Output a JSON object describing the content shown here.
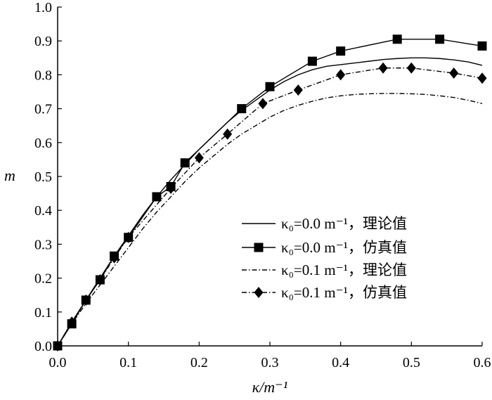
{
  "chart_data": {
    "type": "line",
    "title": "",
    "xlabel": "κ/m⁻¹",
    "ylabel": "m",
    "xlim": [
      0.0,
      0.6
    ],
    "ylim": [
      0.0,
      1.0
    ],
    "x_ticks": [
      "0.0",
      "0.1",
      "0.2",
      "0.3",
      "0.4",
      "0.5",
      "0.6"
    ],
    "y_ticks": [
      "0.0",
      "0.1",
      "0.2",
      "0.3",
      "0.4",
      "0.5",
      "0.6",
      "0.7",
      "0.8",
      "0.9",
      "1.0"
    ],
    "grid": false,
    "legend_position": "center-right",
    "series": [
      {
        "name": "κ₀=0.0 m⁻¹，理论值",
        "style": "solid",
        "marker": "none",
        "x": [
          0.0,
          0.02,
          0.04,
          0.06,
          0.08,
          0.1,
          0.12,
          0.14,
          0.16,
          0.18,
          0.2,
          0.22,
          0.24,
          0.26,
          0.28,
          0.3,
          0.32,
          0.34,
          0.36,
          0.38,
          0.4,
          0.42,
          0.44,
          0.46,
          0.48,
          0.5,
          0.52,
          0.54,
          0.56,
          0.58,
          0.6
        ],
        "y": [
          0.0,
          0.07,
          0.135,
          0.2,
          0.265,
          0.325,
          0.385,
          0.44,
          0.49,
          0.535,
          0.58,
          0.62,
          0.66,
          0.695,
          0.725,
          0.755,
          0.78,
          0.8,
          0.815,
          0.825,
          0.83,
          0.835,
          0.84,
          0.845,
          0.848,
          0.85,
          0.85,
          0.848,
          0.844,
          0.838,
          0.828
        ]
      },
      {
        "name": "κ₀=0.0 m⁻¹，仿真值",
        "style": "solid",
        "marker": "square",
        "x": [
          0.0,
          0.02,
          0.04,
          0.06,
          0.08,
          0.1,
          0.14,
          0.16,
          0.18,
          0.26,
          0.3,
          0.36,
          0.4,
          0.48,
          0.54,
          0.6
        ],
        "y": [
          0.0,
          0.065,
          0.135,
          0.195,
          0.265,
          0.32,
          0.44,
          0.47,
          0.54,
          0.7,
          0.765,
          0.84,
          0.87,
          0.905,
          0.905,
          0.885
        ]
      },
      {
        "name": "κ₀=0.1 m⁻¹，理论值",
        "style": "dashdot",
        "marker": "none",
        "x": [
          0.0,
          0.02,
          0.04,
          0.06,
          0.08,
          0.1,
          0.12,
          0.14,
          0.16,
          0.18,
          0.2,
          0.22,
          0.24,
          0.26,
          0.28,
          0.3,
          0.32,
          0.34,
          0.36,
          0.38,
          0.4,
          0.42,
          0.44,
          0.46,
          0.48,
          0.5,
          0.52,
          0.54,
          0.56,
          0.58,
          0.6
        ],
        "y": [
          0.0,
          0.065,
          0.125,
          0.18,
          0.235,
          0.29,
          0.345,
          0.395,
          0.44,
          0.485,
          0.525,
          0.56,
          0.595,
          0.625,
          0.65,
          0.675,
          0.695,
          0.71,
          0.722,
          0.732,
          0.738,
          0.742,
          0.744,
          0.745,
          0.745,
          0.744,
          0.742,
          0.738,
          0.733,
          0.725,
          0.715
        ]
      },
      {
        "name": "κ₀=0.1 m⁻¹，仿真值",
        "style": "dashdot",
        "marker": "diamond",
        "x": [
          0.0,
          0.02,
          0.04,
          0.06,
          0.08,
          0.1,
          0.16,
          0.2,
          0.24,
          0.29,
          0.34,
          0.4,
          0.46,
          0.5,
          0.56,
          0.6
        ],
        "y": [
          0.0,
          0.07,
          0.135,
          0.195,
          0.26,
          0.32,
          0.465,
          0.555,
          0.625,
          0.715,
          0.755,
          0.8,
          0.82,
          0.82,
          0.805,
          0.79
        ]
      }
    ]
  }
}
